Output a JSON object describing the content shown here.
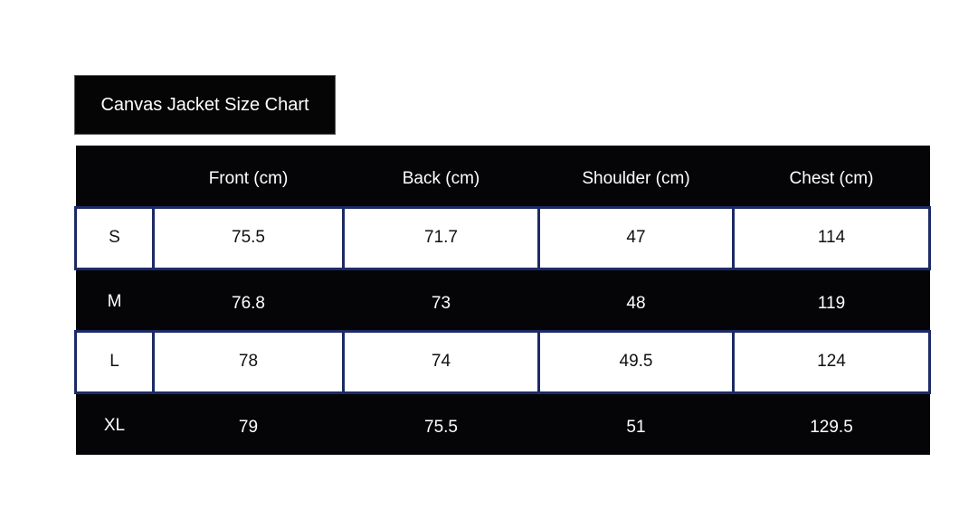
{
  "title": "Canvas Jacket Size Chart",
  "table": {
    "headers": [
      "",
      "Front (cm)",
      "Back (cm)",
      "Shoulder (cm)",
      "Chest (cm)"
    ],
    "rows": [
      [
        "S",
        "75.5",
        "71.7",
        "47",
        "114"
      ],
      [
        "M",
        "76.8",
        "73",
        "48",
        "119"
      ],
      [
        "L",
        "78",
        "74",
        "49.5",
        "124"
      ],
      [
        "XL",
        "79",
        "75.5",
        "51",
        "129.5"
      ]
    ]
  },
  "colors": {
    "dark_row": "#050507",
    "light_row": "#ffffff",
    "border": "#1d2a66"
  }
}
